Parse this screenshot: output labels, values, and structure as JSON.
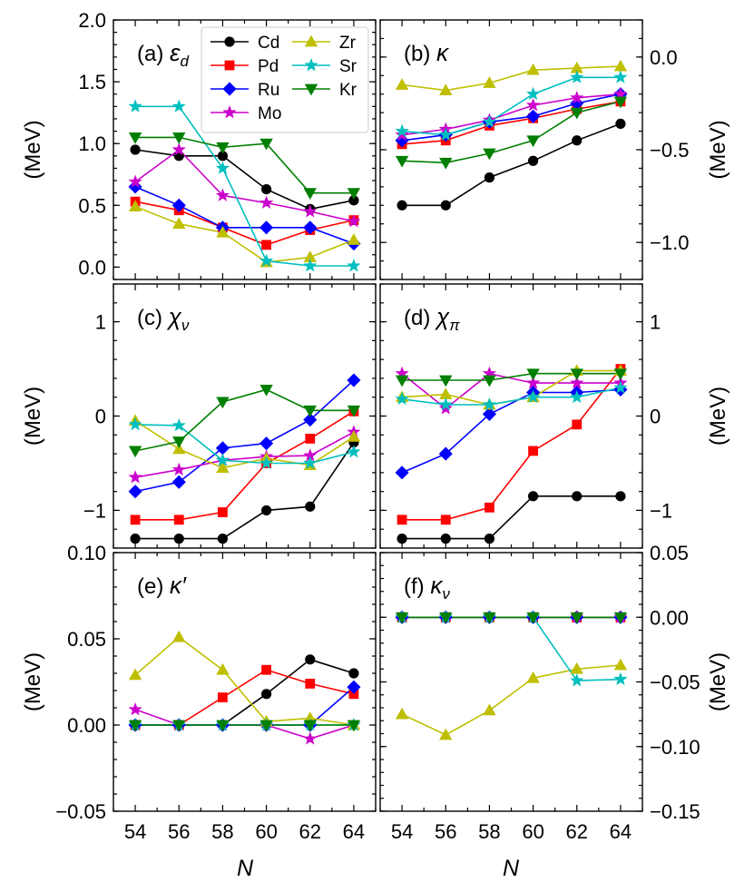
{
  "figure": {
    "xlabel": "N",
    "colors": {
      "Cd": "#000000",
      "Pd": "#ff0000",
      "Ru": "#0000ff",
      "Mo": "#cc00cc",
      "Zr": "#bfbf00",
      "Sr": "#00bfbf",
      "Kr": "#007f00"
    },
    "markers": {
      "Cd": "circle",
      "Pd": "square",
      "Ru": "diamond",
      "Mo": "star",
      "Zr": "triangle-up",
      "Sr": "star",
      "Kr": "triangle-down"
    },
    "legend": {
      "placement": "top-left panel (a), upper-middle",
      "entries": [
        "Cd",
        "Pd",
        "Ru",
        "Mo",
        "Zr",
        "Sr",
        "Kr"
      ]
    }
  },
  "chart_data": [
    {
      "id": "a",
      "type": "line",
      "title": "(a) ε_d",
      "title_text": "(a) ",
      "sym": "ε",
      "sub": "d",
      "ylabel": "(MeV)",
      "yaxis_side": "left",
      "x": [
        54,
        56,
        58,
        60,
        62,
        64
      ],
      "xlim": [
        53,
        65
      ],
      "ylim": [
        -0.1,
        2.0
      ],
      "yticks": [
        0.0,
        0.5,
        1.0,
        1.5,
        2.0
      ],
      "yticklabels": [
        "0.0",
        "0.5",
        "1.0",
        "1.5",
        "2.0"
      ],
      "series": [
        {
          "name": "Cd",
          "values": [
            0.95,
            0.9,
            0.9,
            0.63,
            0.47,
            0.54
          ]
        },
        {
          "name": "Pd",
          "values": [
            0.53,
            0.46,
            0.32,
            0.18,
            0.3,
            0.38
          ]
        },
        {
          "name": "Ru",
          "values": [
            0.65,
            0.5,
            0.32,
            0.32,
            0.32,
            0.19
          ]
        },
        {
          "name": "Mo",
          "values": [
            0.69,
            0.95,
            0.58,
            0.52,
            0.45,
            0.37
          ]
        },
        {
          "name": "Zr",
          "values": [
            0.49,
            0.35,
            0.28,
            0.04,
            0.08,
            0.22
          ]
        },
        {
          "name": "Sr",
          "values": [
            1.3,
            1.3,
            0.8,
            0.05,
            0.01,
            0.01
          ]
        },
        {
          "name": "Kr",
          "values": [
            1.05,
            1.05,
            0.97,
            1.0,
            0.6,
            0.6
          ]
        }
      ]
    },
    {
      "id": "b",
      "type": "line",
      "title": "(b) κ",
      "title_text": "(b) ",
      "sym": "κ",
      "sub": "",
      "ylabel": "(MeV)",
      "yaxis_side": "right",
      "x": [
        54,
        56,
        58,
        60,
        62,
        64
      ],
      "xlim": [
        53,
        65
      ],
      "ylim": [
        -1.2,
        0.2
      ],
      "yticks": [
        -1.0,
        -0.5,
        0.0
      ],
      "yticklabels": [
        "−1.0",
        "−0.5",
        "0.0"
      ],
      "series": [
        {
          "name": "Cd",
          "values": [
            -0.8,
            -0.8,
            -0.65,
            -0.56,
            -0.45,
            -0.36
          ]
        },
        {
          "name": "Pd",
          "values": [
            -0.47,
            -0.45,
            -0.37,
            -0.33,
            -0.28,
            -0.24
          ]
        },
        {
          "name": "Ru",
          "values": [
            -0.45,
            -0.42,
            -0.35,
            -0.32,
            -0.25,
            -0.2
          ]
        },
        {
          "name": "Mo",
          "values": [
            -0.42,
            -0.39,
            -0.34,
            -0.26,
            -0.22,
            -0.2
          ]
        },
        {
          "name": "Zr",
          "values": [
            -0.15,
            -0.18,
            -0.14,
            -0.07,
            -0.06,
            -0.05
          ]
        },
        {
          "name": "Sr",
          "values": [
            -0.4,
            -0.42,
            -0.35,
            -0.2,
            -0.11,
            -0.11
          ]
        },
        {
          "name": "Kr",
          "values": [
            -0.56,
            -0.57,
            -0.52,
            -0.45,
            -0.3,
            -0.24
          ]
        }
      ]
    },
    {
      "id": "c",
      "type": "line",
      "title": "(c) χ_ν",
      "title_text": "(c) ",
      "sym": "χ",
      "sub": "ν",
      "ylabel": "(MeV)",
      "yaxis_side": "left",
      "x": [
        54,
        56,
        58,
        60,
        62,
        64
      ],
      "xlim": [
        53,
        65
      ],
      "ylim": [
        -1.4,
        1.4
      ],
      "yticks": [
        -1,
        0,
        1
      ],
      "yticklabels": [
        "−1",
        "0",
        "1"
      ],
      "series": [
        {
          "name": "Cd",
          "values": [
            -1.3,
            -1.3,
            -1.3,
            -1.0,
            -0.96,
            -0.28
          ]
        },
        {
          "name": "Pd",
          "values": [
            -1.1,
            -1.1,
            -1.02,
            -0.5,
            -0.24,
            0.05
          ]
        },
        {
          "name": "Ru",
          "values": [
            -0.8,
            -0.7,
            -0.34,
            -0.29,
            -0.04,
            0.38
          ]
        },
        {
          "name": "Mo",
          "values": [
            -0.65,
            -0.57,
            -0.47,
            -0.43,
            -0.42,
            -0.17
          ]
        },
        {
          "name": "Zr",
          "values": [
            -0.05,
            -0.35,
            -0.55,
            -0.45,
            -0.52,
            -0.22
          ]
        },
        {
          "name": "Sr",
          "values": [
            -0.09,
            -0.1,
            -0.47,
            -0.5,
            -0.5,
            -0.38
          ]
        },
        {
          "name": "Kr",
          "values": [
            -0.37,
            -0.27,
            0.15,
            0.28,
            0.06,
            0.06
          ]
        }
      ]
    },
    {
      "id": "d",
      "type": "line",
      "title": "(d) χ_π",
      "title_text": "(d) ",
      "sym": "χ",
      "sub": "π",
      "ylabel": "(MeV)",
      "yaxis_side": "right",
      "x": [
        54,
        56,
        58,
        60,
        62,
        64
      ],
      "xlim": [
        53,
        65
      ],
      "ylim": [
        -1.4,
        1.4
      ],
      "yticks": [
        -1,
        0,
        1
      ],
      "yticklabels": [
        "−1",
        "0",
        "1"
      ],
      "series": [
        {
          "name": "Cd",
          "values": [
            -1.3,
            -1.3,
            -1.3,
            -0.85,
            -0.85,
            -0.85
          ]
        },
        {
          "name": "Pd",
          "values": [
            -1.1,
            -1.1,
            -0.97,
            -0.37,
            -0.09,
            0.5
          ]
        },
        {
          "name": "Ru",
          "values": [
            -0.6,
            -0.4,
            0.02,
            0.25,
            0.25,
            0.28
          ]
        },
        {
          "name": "Mo",
          "values": [
            0.45,
            0.08,
            0.45,
            0.35,
            0.35,
            0.35
          ]
        },
        {
          "name": "Zr",
          "values": [
            0.2,
            0.23,
            0.12,
            0.2,
            0.48,
            0.48
          ]
        },
        {
          "name": "Sr",
          "values": [
            0.18,
            0.12,
            0.12,
            0.2,
            0.2,
            0.3
          ]
        },
        {
          "name": "Kr",
          "values": [
            0.38,
            0.38,
            0.38,
            0.45,
            0.45,
            0.45
          ]
        }
      ]
    },
    {
      "id": "e",
      "type": "line",
      "title": "(e) κ′",
      "title_text": "(e) ",
      "sym": "κ′",
      "sub": "",
      "ylabel": "(MeV)",
      "yaxis_side": "left",
      "x": [
        54,
        56,
        58,
        60,
        62,
        64
      ],
      "xlim": [
        53,
        65
      ],
      "ylim": [
        -0.05,
        0.1
      ],
      "yticks": [
        -0.05,
        0.0,
        0.05,
        0.1
      ],
      "yticklabels": [
        "−0.05",
        "0.00",
        "0.05",
        "0.10"
      ],
      "series": [
        {
          "name": "Cd",
          "values": [
            0,
            0,
            0,
            0.018,
            0.038,
            0.03
          ]
        },
        {
          "name": "Pd",
          "values": [
            0,
            0,
            0.016,
            0.032,
            0.024,
            0.018
          ]
        },
        {
          "name": "Ru",
          "values": [
            0,
            0,
            0,
            0,
            0,
            0.022
          ]
        },
        {
          "name": "Mo",
          "values": [
            0.009,
            0,
            0,
            0,
            -0.008,
            0
          ]
        },
        {
          "name": "Zr",
          "values": [
            0.029,
            0.051,
            0.032,
            0.002,
            0.004,
            0
          ]
        },
        {
          "name": "Sr",
          "values": [
            0,
            0,
            0,
            0,
            0,
            0
          ]
        },
        {
          "name": "Kr",
          "values": [
            0,
            0,
            0,
            0,
            0,
            0
          ]
        }
      ]
    },
    {
      "id": "f",
      "type": "line",
      "title": "(f) κ_ν",
      "title_text": "(f) ",
      "sym": "κ",
      "sub": "ν",
      "ylabel": "(MeV)",
      "yaxis_side": "right",
      "x": [
        54,
        56,
        58,
        60,
        62,
        64
      ],
      "xlim": [
        53,
        65
      ],
      "ylim": [
        -0.15,
        0.05
      ],
      "yticks": [
        -0.15,
        -0.1,
        -0.05,
        0.0,
        0.05
      ],
      "yticklabels": [
        "−0.15",
        "−0.10",
        "−0.05",
        "0.00",
        "0.05"
      ],
      "series": [
        {
          "name": "Cd",
          "values": [
            0,
            0,
            0,
            0,
            0,
            0
          ]
        },
        {
          "name": "Pd",
          "values": [
            0,
            0,
            0,
            0,
            0,
            0
          ]
        },
        {
          "name": "Ru",
          "values": [
            0,
            0,
            0,
            0,
            0,
            0
          ]
        },
        {
          "name": "Mo",
          "values": [
            0,
            0,
            0,
            0,
            0,
            0
          ]
        },
        {
          "name": "Zr",
          "values": [
            -0.075,
            -0.091,
            -0.072,
            -0.047,
            -0.04,
            -0.037
          ]
        },
        {
          "name": "Sr",
          "values": [
            0,
            0,
            0,
            0,
            -0.049,
            -0.048
          ]
        },
        {
          "name": "Kr",
          "values": [
            0,
            0,
            0,
            0,
            0,
            0
          ]
        }
      ]
    }
  ]
}
